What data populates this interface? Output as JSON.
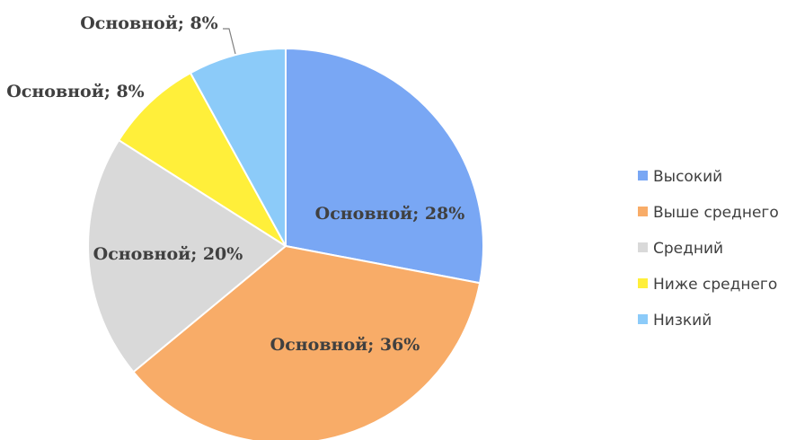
{
  "chart_data": {
    "type": "pie",
    "title": "",
    "start_angle_deg": 0,
    "direction": "clockwise",
    "legend_position": "right",
    "slices": [
      {
        "category": "Высокий",
        "value": 28,
        "label": "Основной; 28%",
        "color": "#79A7F4"
      },
      {
        "category": "Выше среднего",
        "value": 36,
        "label": "Основной; 36%",
        "color": "#F8AC68"
      },
      {
        "category": "Средний",
        "value": 20,
        "label": "Основной; 20%",
        "color": "#D9D9D9"
      },
      {
        "category": "Ниже среднего",
        "value": 8,
        "label": "Основной; 8%",
        "color": "#FFEF3A"
      },
      {
        "category": "Низкий",
        "value": 8,
        "label": "Основной; 8%",
        "color": "#8CCBF9"
      }
    ]
  }
}
